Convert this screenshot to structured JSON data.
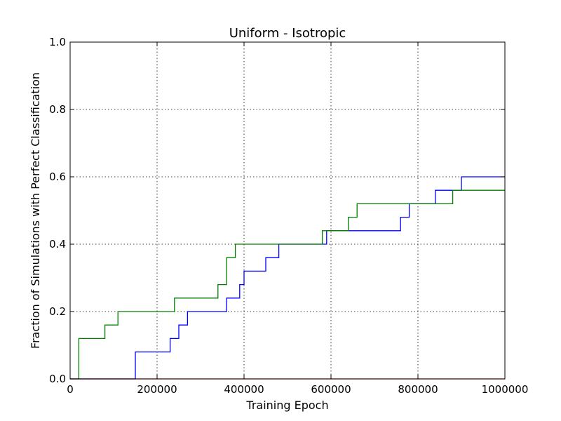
{
  "chart_data": {
    "type": "line",
    "step": true,
    "title": "Uniform - Isotropic",
    "xlabel": "Training Epoch",
    "ylabel": "Fraction of Simulations with Perfect Classification",
    "xlim": [
      0,
      1000000
    ],
    "ylim": [
      0.0,
      1.0
    ],
    "xticks": [
      0,
      200000,
      400000,
      600000,
      800000,
      1000000
    ],
    "xtick_labels": [
      "0",
      "200000",
      "400000",
      "600000",
      "800000",
      "1000000"
    ],
    "yticks": [
      0.0,
      0.2,
      0.4,
      0.6,
      0.8,
      1.0
    ],
    "ytick_labels": [
      "0.0",
      "0.2",
      "0.4",
      "0.6",
      "0.8",
      "1.0"
    ],
    "grid": true,
    "series": [
      {
        "color": "#0000ff",
        "points": [
          [
            0,
            0.0
          ],
          [
            150000,
            0.08
          ],
          [
            230000,
            0.12
          ],
          [
            250000,
            0.16
          ],
          [
            270000,
            0.2
          ],
          [
            360000,
            0.24
          ],
          [
            390000,
            0.28
          ],
          [
            400000,
            0.32
          ],
          [
            450000,
            0.36
          ],
          [
            480000,
            0.4
          ],
          [
            590000,
            0.44
          ],
          [
            760000,
            0.48
          ],
          [
            780000,
            0.52
          ],
          [
            840000,
            0.56
          ],
          [
            900000,
            0.6
          ],
          [
            1000000,
            0.6
          ]
        ]
      },
      {
        "color": "#008000",
        "points": [
          [
            0,
            0.0
          ],
          [
            20000,
            0.12
          ],
          [
            80000,
            0.16
          ],
          [
            110000,
            0.2
          ],
          [
            240000,
            0.24
          ],
          [
            340000,
            0.28
          ],
          [
            360000,
            0.36
          ],
          [
            380000,
            0.4
          ],
          [
            580000,
            0.44
          ],
          [
            640000,
            0.48
          ],
          [
            660000,
            0.52
          ],
          [
            880000,
            0.56
          ],
          [
            1000000,
            0.56
          ]
        ]
      },
      {
        "color": "#ff0000",
        "points": [
          [
            0,
            0.0
          ],
          [
            1000000,
            0.0
          ]
        ]
      }
    ]
  }
}
